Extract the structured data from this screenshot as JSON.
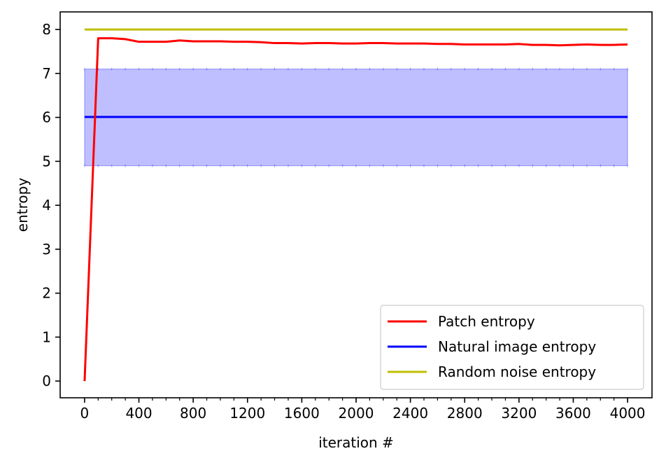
{
  "chart_data": {
    "type": "line",
    "title": "",
    "xlabel": "iteration #",
    "ylabel": "entropy",
    "xlim": [
      -180,
      4180
    ],
    "ylim": [
      -0.38,
      8.4
    ],
    "x_ticks": [
      0,
      400,
      800,
      1200,
      1600,
      2000,
      2400,
      2800,
      3200,
      3600,
      4000
    ],
    "x_tick_labels": [
      "0",
      "400",
      "800",
      "1200",
      "1600",
      "2000",
      "2400",
      "2800",
      "3200",
      "3600",
      "4000"
    ],
    "x_minor_tick_step": 100,
    "y_ticks": [
      0,
      1,
      2,
      3,
      4,
      5,
      6,
      7,
      8
    ],
    "y_tick_labels": [
      "0",
      "1",
      "2",
      "3",
      "4",
      "5",
      "6",
      "7",
      "8"
    ],
    "grid": false,
    "legend_position": "bottom-right",
    "series": [
      {
        "name": "Patch entropy",
        "color": "#ff0000",
        "x": [
          0,
          100,
          200,
          300,
          400,
          500,
          600,
          700,
          800,
          900,
          1000,
          1100,
          1200,
          1300,
          1400,
          1500,
          1600,
          1700,
          1800,
          1900,
          2000,
          2100,
          2200,
          2300,
          2400,
          2500,
          2600,
          2700,
          2800,
          2900,
          3000,
          3100,
          3200,
          3300,
          3400,
          3500,
          3600,
          3700,
          3800,
          3900,
          4000
        ],
        "y": [
          0,
          7.8,
          7.8,
          7.78,
          7.72,
          7.72,
          7.72,
          7.75,
          7.73,
          7.73,
          7.73,
          7.72,
          7.72,
          7.71,
          7.69,
          7.69,
          7.68,
          7.69,
          7.69,
          7.68,
          7.68,
          7.69,
          7.69,
          7.68,
          7.68,
          7.68,
          7.67,
          7.67,
          7.66,
          7.66,
          7.66,
          7.66,
          7.67,
          7.65,
          7.65,
          7.64,
          7.65,
          7.66,
          7.65,
          7.65,
          7.66
        ]
      },
      {
        "name": "Natural image entropy",
        "color": "#0000ff",
        "x": [
          0,
          4000
        ],
        "y": [
          6.01,
          6.01
        ],
        "band": {
          "lower": 4.9,
          "upper": 7.1,
          "color": "#0000ff",
          "opacity": 0.25
        }
      },
      {
        "name": "Random noise entropy",
        "color": "#bfbf00",
        "x": [
          0,
          4000
        ],
        "y": [
          8.0,
          8.0
        ]
      }
    ]
  }
}
